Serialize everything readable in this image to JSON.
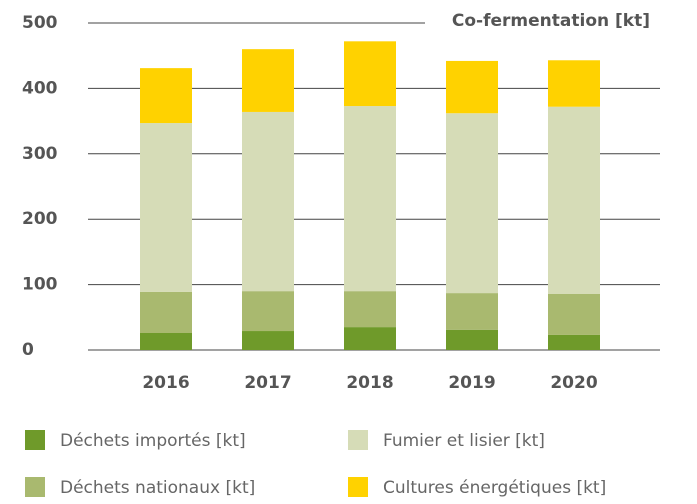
{
  "chart_data": {
    "type": "stacked_bar",
    "title": "Co-fermentation [kt]",
    "categories": [
      "2016",
      "2017",
      "2018",
      "2019",
      "2020"
    ],
    "series": [
      {
        "name": "Déchets importés [kt]",
        "color": "#6f9a2a",
        "values": [
          26,
          29,
          35,
          31,
          23
        ]
      },
      {
        "name": "Déchets nationaux [kt]",
        "color": "#a9b96f",
        "values": [
          63,
          61,
          55,
          56,
          63
        ]
      },
      {
        "name": "Fumier et lisier [kt]",
        "color": "#d6dcb7",
        "values": [
          258,
          274,
          283,
          275,
          286
        ]
      },
      {
        "name": "Cultures énergétiques [kt]",
        "color": "#ffd200",
        "values": [
          84,
          96,
          99,
          80,
          71
        ]
      }
    ],
    "ylim": [
      0,
      500
    ],
    "yticks": [
      0,
      100,
      200,
      300,
      400,
      500
    ],
    "grid": true
  }
}
